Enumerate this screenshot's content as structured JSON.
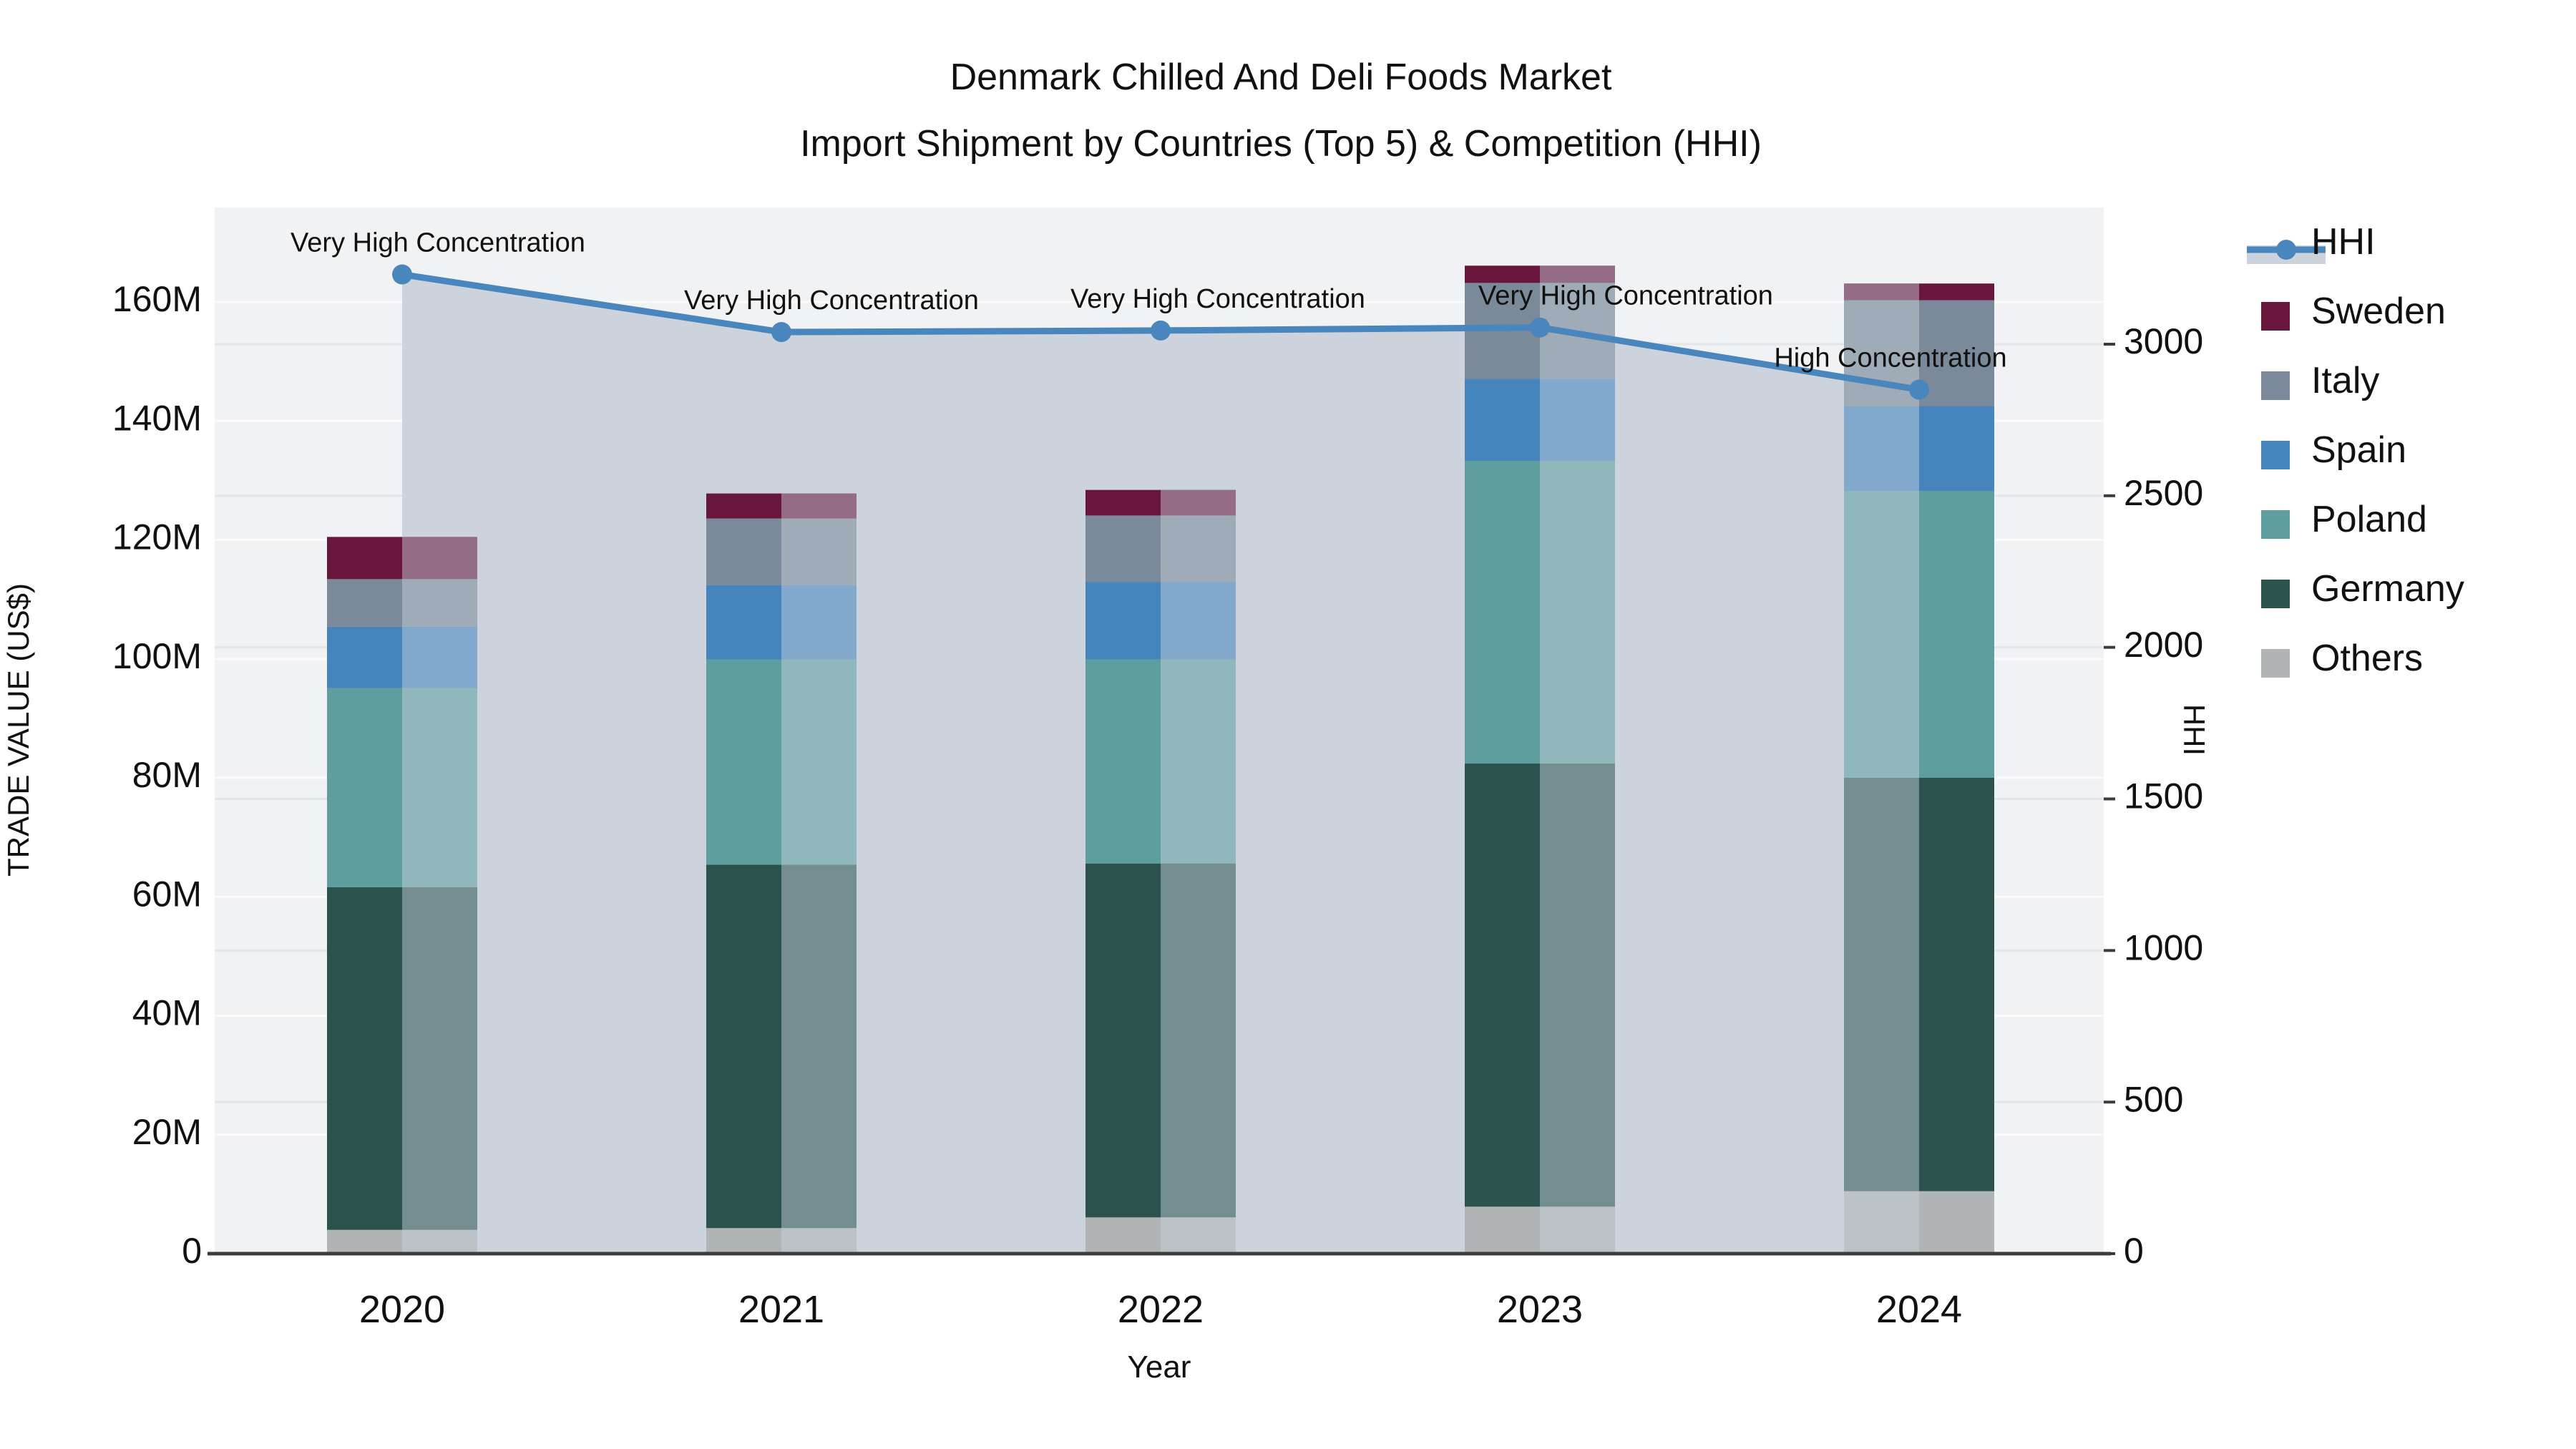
{
  "title": {
    "line1": "Denmark Chilled And Deli Foods Market",
    "line2": "Import Shipment by Countries (Top 5) & Competition (HHI)"
  },
  "chart_data": {
    "type": "bar+line",
    "subtype": "stacked-bars-with-secondary-axis-line-area",
    "categories": [
      "2020",
      "2021",
      "2022",
      "2023",
      "2024"
    ],
    "bar_unit": "M US$",
    "bar_series": [
      {
        "name": "Others",
        "color": "#b0b4b4",
        "values": [
          4.0,
          4.3,
          6.1,
          7.9,
          10.5
        ]
      },
      {
        "name": "Germany",
        "color": "#2c524e",
        "values": [
          57.6,
          61.1,
          59.5,
          74.5,
          69.5
        ]
      },
      {
        "name": "Poland",
        "color": "#5f9e9e",
        "values": [
          33.5,
          34.5,
          34.3,
          50.9,
          48.2
        ]
      },
      {
        "name": "Spain",
        "color": "#4684bc",
        "values": [
          10.3,
          12.5,
          13.0,
          13.8,
          14.3
        ]
      },
      {
        "name": "Italy",
        "color": "#7a8a9a",
        "values": [
          8.0,
          11.2,
          11.2,
          16.1,
          17.8
        ]
      },
      {
        "name": "Sweden",
        "color": "#69163c",
        "values": [
          7.1,
          4.2,
          4.3,
          2.9,
          2.8
        ]
      }
    ],
    "bar_totals": [
      120.5,
      127.8,
      128.4,
      166.1,
      163.1
    ],
    "line_series": {
      "name": "HHI",
      "color": "#4a86be",
      "area_color": "#ccd3dc",
      "values": [
        3230,
        3040,
        3045,
        3055,
        2850
      ]
    },
    "annotations": [
      {
        "year": "2020",
        "text": "Very High Concentration"
      },
      {
        "year": "2021",
        "text": "Very High Concentration"
      },
      {
        "year": "2022",
        "text": "Very High Concentration"
      },
      {
        "year": "2023",
        "text": "Very High Concentration"
      },
      {
        "year": "2024",
        "text": "High Concentration"
      }
    ],
    "y_left": {
      "label": "TRADE VALUE (US$)",
      "tick_labels": [
        "0",
        "20M",
        "40M",
        "60M",
        "80M",
        "100M",
        "120M",
        "140M",
        "160M"
      ],
      "tick_values": [
        0,
        20,
        40,
        60,
        80,
        100,
        120,
        140,
        160
      ],
      "range": [
        0,
        176
      ]
    },
    "y_right": {
      "label": "HHI",
      "tick_labels": [
        "0",
        "500",
        "1000",
        "1500",
        "2000",
        "2500",
        "3000"
      ],
      "tick_values": [
        0,
        500,
        1000,
        1500,
        2000,
        2500,
        3000
      ],
      "range": [
        0,
        3460
      ]
    },
    "x_label": "Year",
    "legend": {
      "position": "right",
      "entries": [
        "HHI",
        "Sweden",
        "Italy",
        "Spain",
        "Poland",
        "Germany",
        "Others"
      ]
    },
    "grid": true
  },
  "colors": {
    "background": "#ffffff",
    "plot_background": "#f1f2f4",
    "grid_left": "#fbfbfc",
    "grid_right": "#e3e5e8",
    "axis_spine": "#3c3c3c",
    "text": "#111111",
    "area_overlay": "rgba(205,212,221,0.45)"
  }
}
